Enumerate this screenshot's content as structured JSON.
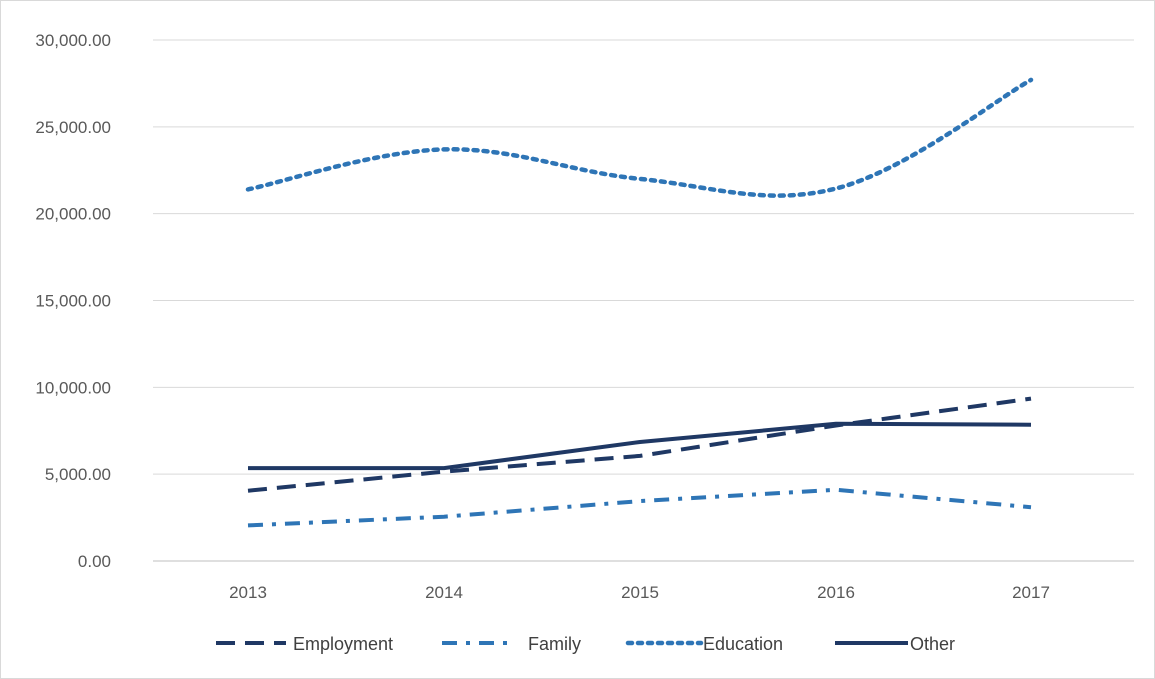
{
  "chart_data": {
    "type": "line",
    "title": "",
    "xlabel": "",
    "ylabel": "",
    "categories": [
      "2013",
      "2014",
      "2015",
      "2016",
      "2017"
    ],
    "y_ticks": [
      "0.00",
      "5,000.00",
      "10,000.00",
      "15,000.00",
      "20,000.00",
      "25,000.00",
      "30,000.00"
    ],
    "ylim": [
      0,
      30000
    ],
    "grid": true,
    "legend_position": "bottom",
    "series": [
      {
        "name": "Employment",
        "values": [
          4050,
          5150,
          6050,
          7800,
          9350
        ],
        "color": "#1f3864",
        "style": "dash"
      },
      {
        "name": "Family",
        "values": [
          2050,
          2550,
          3450,
          4100,
          3100
        ],
        "color": "#2e75b6",
        "style": "dash-dot"
      },
      {
        "name": "Education",
        "values": [
          21400,
          23700,
          22000,
          21450,
          27700
        ],
        "color": "#2e75b6",
        "style": "dot"
      },
      {
        "name": "Other",
        "values": [
          5350,
          5350,
          6850,
          7900,
          7850
        ],
        "color": "#1f3864",
        "style": "solid"
      }
    ]
  }
}
